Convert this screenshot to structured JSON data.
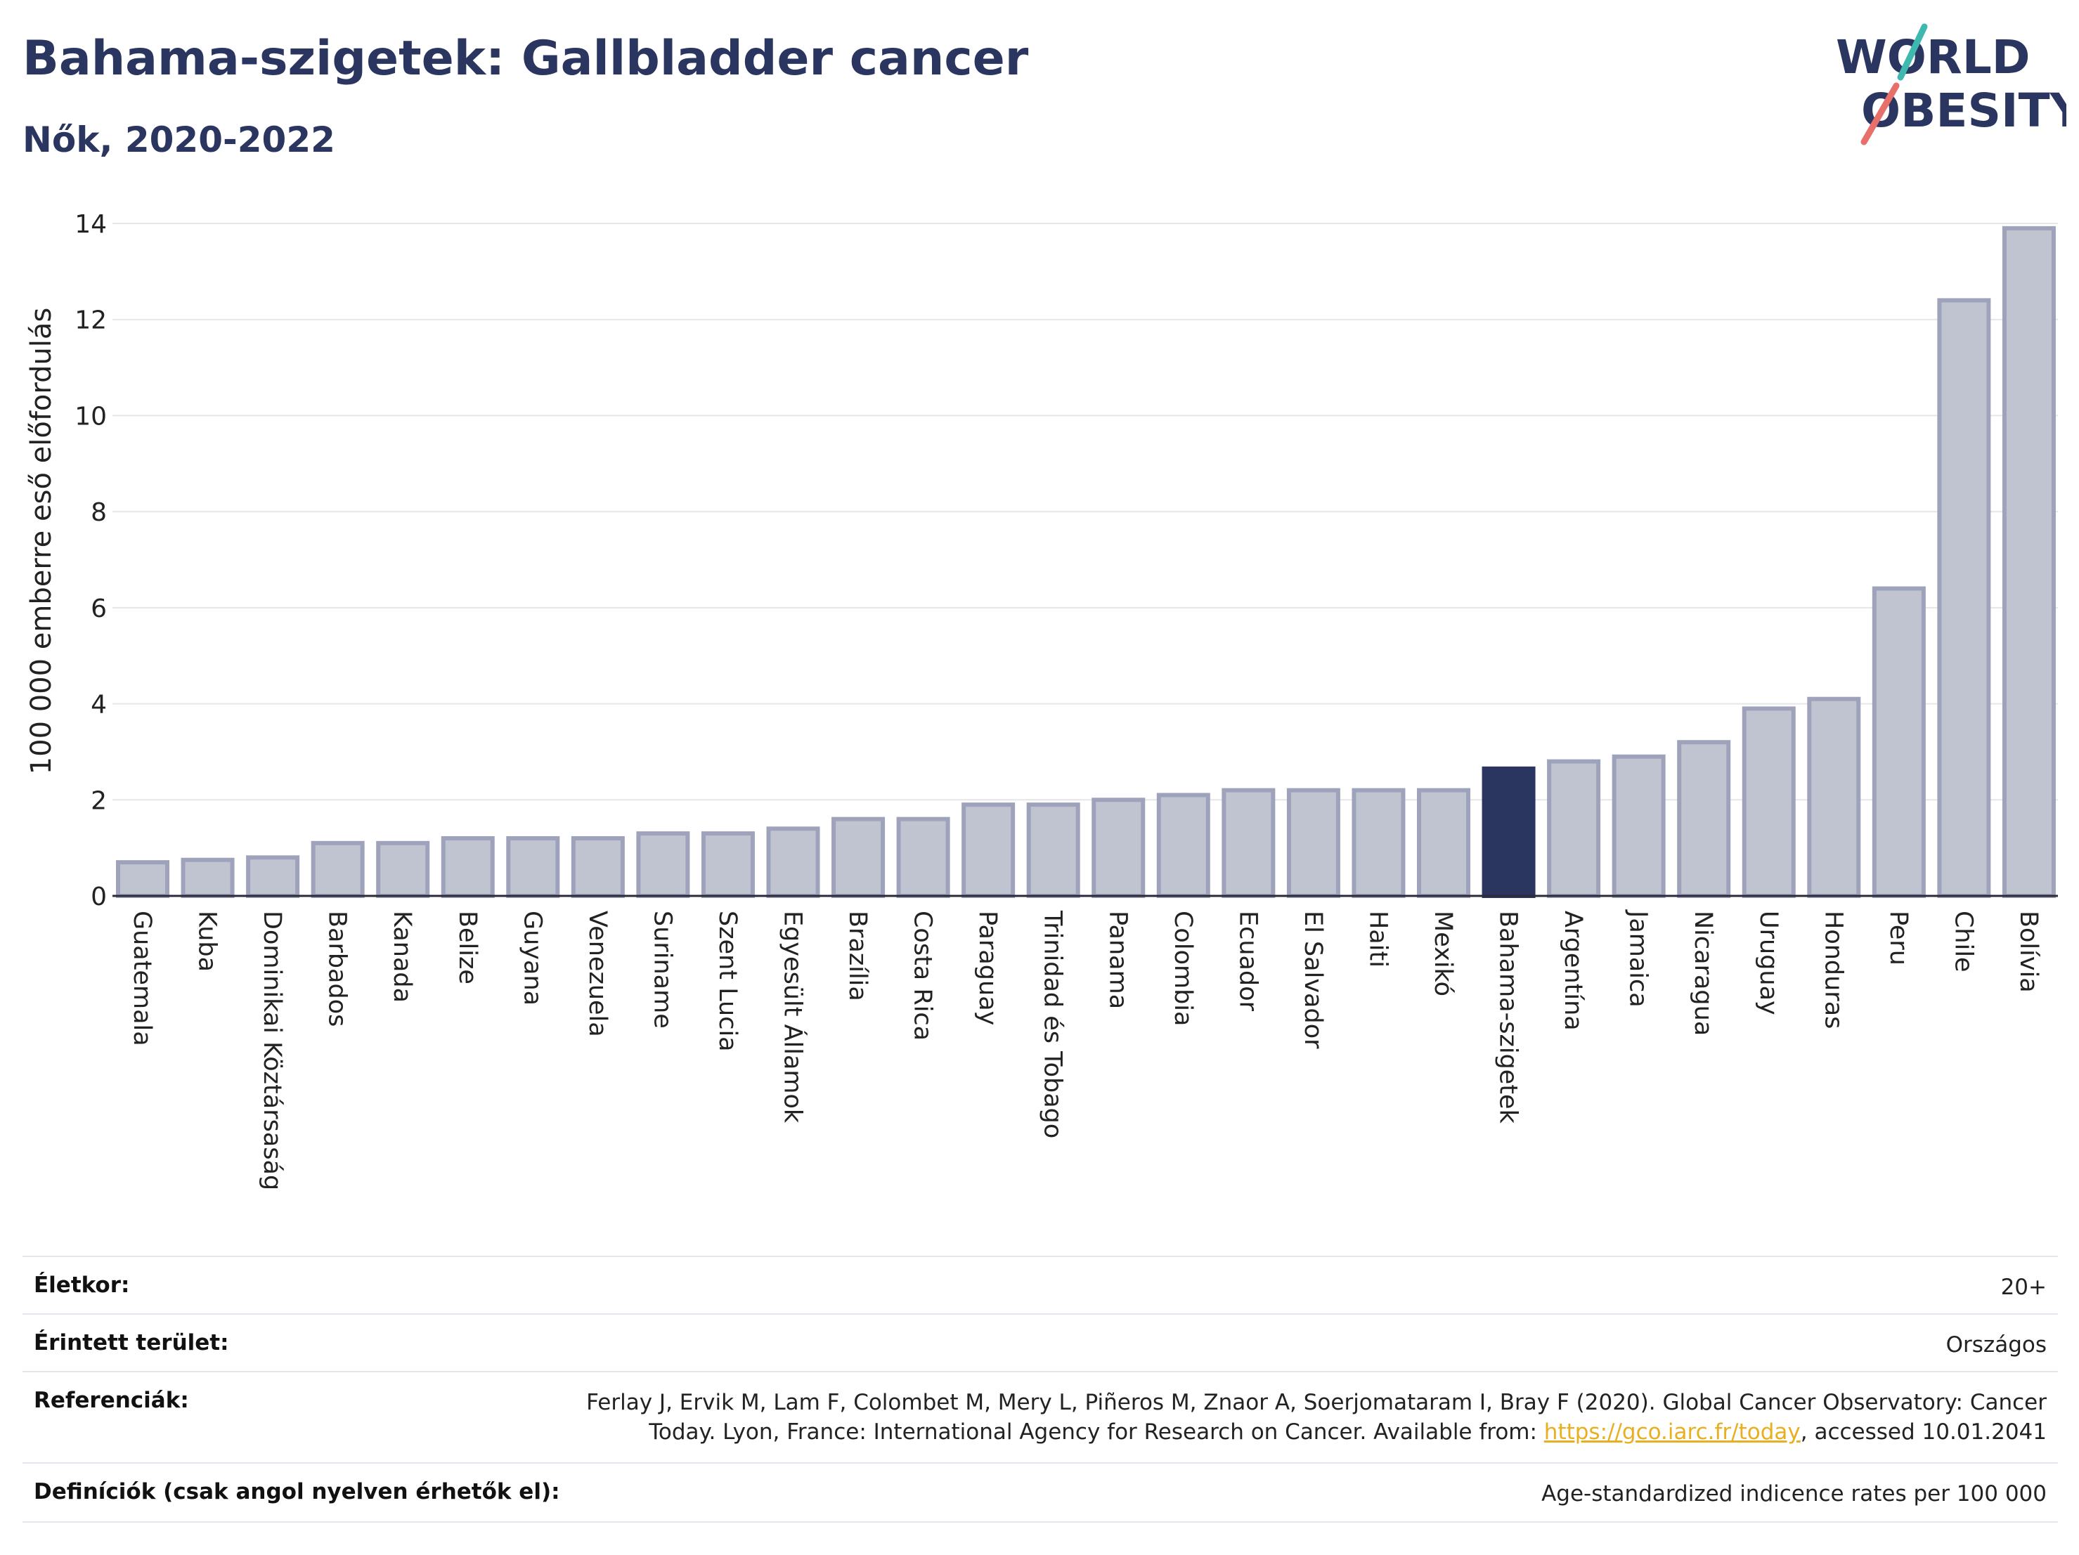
{
  "header": {
    "title": "Bahama-szigetek: Gallbladder cancer",
    "subtitle": "Nők, 2020-2022"
  },
  "logo": {
    "line1": "WORLD",
    "line2": "OBESITY",
    "colors": {
      "text": "#2a3560",
      "slash_top": "#3fb8b0",
      "slash_bottom": "#e8706a"
    }
  },
  "chart_data": {
    "type": "bar",
    "categories": [
      "Guatemala",
      "Kuba",
      "Dominikai Köztársaság",
      "Barbados",
      "Kanada",
      "Belize",
      "Guyana",
      "Venezuela",
      "Suriname",
      "Szent Lucia",
      "Egyesült Államok",
      "Brazília",
      "Costa Rica",
      "Paraguay",
      "Trinidad és Tobago",
      "Panama",
      "Colombia",
      "Ecuador",
      "El Salvador",
      "Haiti",
      "Mexikó",
      "Bahama-szigetek",
      "Argentína",
      "Jamaica",
      "Nicaragua",
      "Uruguay",
      "Honduras",
      "Peru",
      "Chile",
      "Bolívia"
    ],
    "values": [
      0.7,
      0.75,
      0.8,
      1.1,
      1.1,
      1.2,
      1.2,
      1.2,
      1.3,
      1.3,
      1.4,
      1.6,
      1.6,
      1.9,
      1.9,
      2.0,
      2.1,
      2.2,
      2.2,
      2.2,
      2.2,
      2.65,
      2.8,
      2.9,
      3.2,
      3.9,
      4.1,
      6.4,
      12.4,
      13.9
    ],
    "highlight": "Bahama-szigetek",
    "ylabel": "100 000 emberre eső előfordulás",
    "xlabel": "",
    "ylim": [
      0,
      14
    ],
    "yticks": [
      0,
      2,
      4,
      6,
      8,
      10,
      12,
      14
    ],
    "grid": true,
    "colors": {
      "bar": "#c0c4d1",
      "bar_edge": "#9ea3bb",
      "highlight": "#2a3560",
      "grid": "#e6e6ea"
    }
  },
  "meta": {
    "age_label": "Életkor:",
    "age_value": "20+",
    "area_label": "Érintett terület:",
    "area_value": "Országos",
    "ref_label": "Referenciák:",
    "ref_line1": "Ferlay J, Ervik M, Lam F, Colombet M, Mery L, Piñeros M, Znaor A, Soerjomataram I, Bray F (2020). Global Cancer Observatory: Cancer",
    "ref_line2_pre": "Today. Lyon, France: International Agency for Research on Cancer. Available from: ",
    "ref_link": "https://gco.iarc.fr/today",
    "ref_line2_post": ", accessed 10.01.2041",
    "def_label": "Definíciók (csak angol nyelven érhetők el):",
    "def_value": "Age-standardized indicence rates per 100 000"
  }
}
